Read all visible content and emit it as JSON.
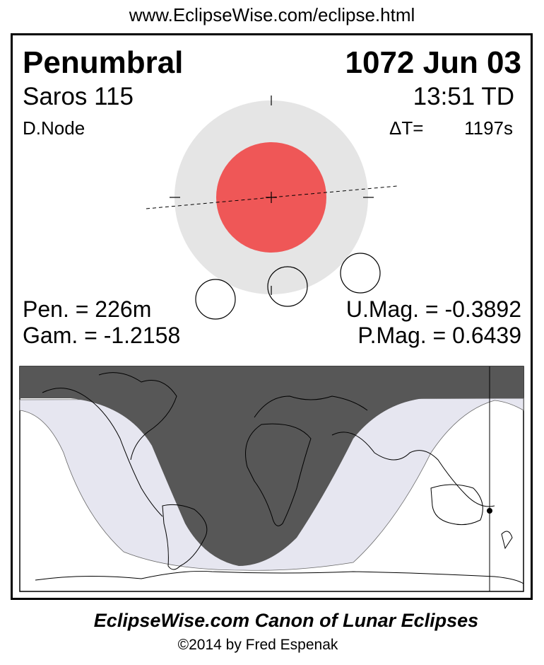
{
  "url": "www.EclipseWise.com/eclipse.html",
  "eclipse": {
    "type": "Penumbral",
    "date": "1072 Jun 03",
    "saros": "Saros 115",
    "time": "13:51 TD",
    "node": "D.Node",
    "delta_t_label": "ΔT=",
    "delta_t_value": "1197s"
  },
  "stats": {
    "pen": "Pen. = 226m",
    "gam": "Gam. = -1.2158",
    "umag": "U.Mag. = -0.3892",
    "pmag": "P.Mag. = 0.6439"
  },
  "colors": {
    "penumbra": "#e5e5e5",
    "umbra": "#ef5757",
    "map_umbral_night": "#575757",
    "map_penumbral": "#e6e6f0"
  },
  "footer": {
    "title": "EclipseWise.com Canon of Lunar Eclipses",
    "copyright": "©2014 by Fred Espenak"
  }
}
